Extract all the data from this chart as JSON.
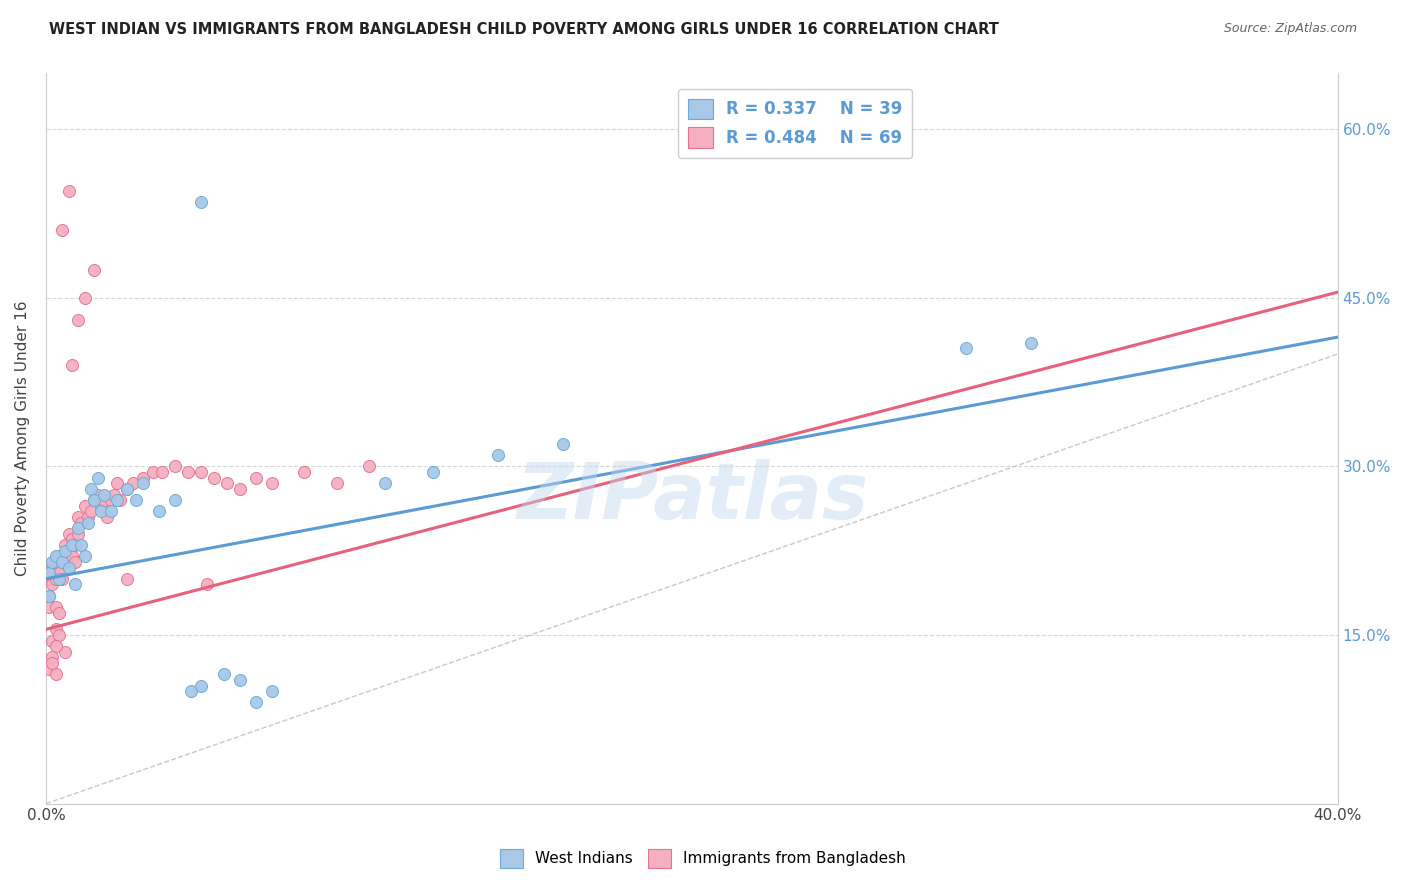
{
  "title": "WEST INDIAN VS IMMIGRANTS FROM BANGLADESH CHILD POVERTY AMONG GIRLS UNDER 16 CORRELATION CHART",
  "source": "Source: ZipAtlas.com",
  "ylabel": "Child Poverty Among Girls Under 16",
  "right_yticklabels": [
    "",
    "15.0%",
    "30.0%",
    "45.0%",
    "60.0%"
  ],
  "xlim": [
    0.0,
    0.4
  ],
  "ylim": [
    0.0,
    0.65
  ],
  "watermark": "ZIPatlas",
  "legend_r1": "0.337",
  "legend_n1": "39",
  "legend_r2": "0.484",
  "legend_n2": "69",
  "color_west_indian_fill": "#a8c8e8",
  "color_west_indian_edge": "#6aaad4",
  "color_bangladesh_fill": "#f4b0c0",
  "color_bangladesh_edge": "#e87090",
  "color_line_west_indian": "#5b9bd5",
  "color_line_bangladesh": "#e8607a",
  "color_dashed": "#c8c8c8",
  "color_grid": "#d8d8d8",
  "wi_line_x0": 0.0,
  "wi_line_y0": 0.2,
  "wi_line_x1": 0.4,
  "wi_line_y1": 0.415,
  "bd_line_x0": 0.0,
  "bd_line_y0": 0.155,
  "bd_line_x1": 0.4,
  "bd_line_y1": 0.455,
  "west_indian_x": [
    0.048,
    0.001,
    0.001,
    0.002,
    0.003,
    0.004,
    0.005,
    0.006,
    0.007,
    0.008,
    0.009,
    0.01,
    0.011,
    0.012,
    0.013,
    0.014,
    0.015,
    0.016,
    0.017,
    0.018,
    0.02,
    0.022,
    0.025,
    0.028,
    0.03,
    0.035,
    0.04,
    0.045,
    0.048,
    0.055,
    0.06,
    0.065,
    0.07,
    0.105,
    0.12,
    0.14,
    0.16,
    0.285,
    0.305
  ],
  "west_indian_y": [
    0.535,
    0.205,
    0.185,
    0.215,
    0.22,
    0.2,
    0.215,
    0.225,
    0.21,
    0.23,
    0.195,
    0.245,
    0.23,
    0.22,
    0.25,
    0.28,
    0.27,
    0.29,
    0.26,
    0.275,
    0.26,
    0.27,
    0.28,
    0.27,
    0.285,
    0.26,
    0.27,
    0.1,
    0.105,
    0.115,
    0.11,
    0.09,
    0.1,
    0.285,
    0.295,
    0.31,
    0.32,
    0.405,
    0.41
  ],
  "bangladesh_x": [
    0.001,
    0.001,
    0.001,
    0.002,
    0.002,
    0.003,
    0.003,
    0.004,
    0.004,
    0.005,
    0.005,
    0.006,
    0.006,
    0.007,
    0.007,
    0.008,
    0.008,
    0.009,
    0.009,
    0.01,
    0.01,
    0.011,
    0.012,
    0.013,
    0.014,
    0.015,
    0.016,
    0.017,
    0.018,
    0.019,
    0.02,
    0.021,
    0.022,
    0.023,
    0.025,
    0.027,
    0.03,
    0.033,
    0.036,
    0.04,
    0.044,
    0.048,
    0.052,
    0.056,
    0.06,
    0.065,
    0.07,
    0.08,
    0.09,
    0.1,
    0.025,
    0.05,
    0.012,
    0.008,
    0.005,
    0.007,
    0.01,
    0.015,
    0.003,
    0.004,
    0.002,
    0.003,
    0.006,
    0.004,
    0.003,
    0.002,
    0.001,
    0.002,
    0.003
  ],
  "bangladesh_y": [
    0.2,
    0.185,
    0.175,
    0.21,
    0.195,
    0.215,
    0.2,
    0.22,
    0.205,
    0.215,
    0.2,
    0.23,
    0.215,
    0.24,
    0.225,
    0.235,
    0.22,
    0.23,
    0.215,
    0.255,
    0.24,
    0.25,
    0.265,
    0.255,
    0.26,
    0.27,
    0.275,
    0.265,
    0.27,
    0.255,
    0.27,
    0.275,
    0.285,
    0.27,
    0.28,
    0.285,
    0.29,
    0.295,
    0.295,
    0.3,
    0.295,
    0.295,
    0.29,
    0.285,
    0.28,
    0.29,
    0.285,
    0.295,
    0.285,
    0.3,
    0.2,
    0.195,
    0.45,
    0.39,
    0.51,
    0.545,
    0.43,
    0.475,
    0.175,
    0.17,
    0.145,
    0.155,
    0.135,
    0.15,
    0.14,
    0.13,
    0.12,
    0.125,
    0.115
  ]
}
